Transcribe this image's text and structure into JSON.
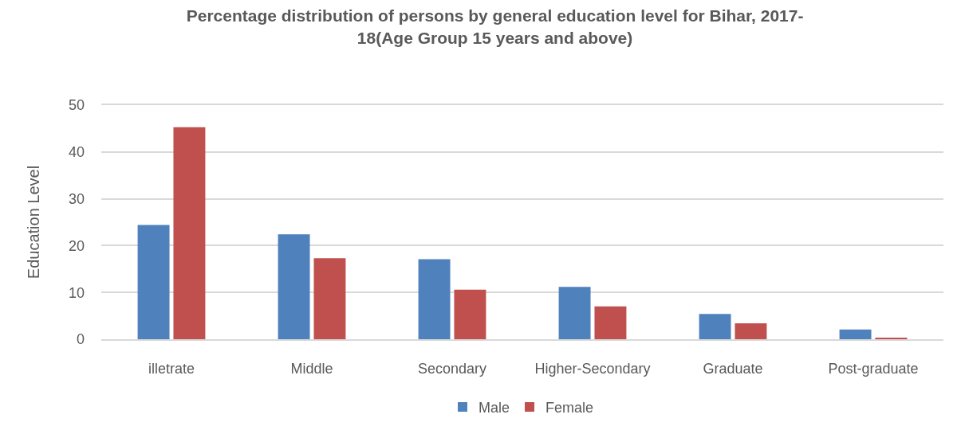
{
  "chart_data": {
    "type": "bar",
    "title": "Percentage distribution of persons by general education level for Bihar, 2017-\n18(Age Group 15 years and above)",
    "ylabel": "Education Level",
    "categories": [
      "illetrate",
      "Middle",
      "Secondary",
      "Higher-Secondary",
      "Graduate",
      "Post-graduate"
    ],
    "series": [
      {
        "name": "Male",
        "color": "#4f81bd",
        "values": [
          24.4,
          22.4,
          17.1,
          11.2,
          5.4,
          2.1
        ]
      },
      {
        "name": "Female",
        "color": "#c0504d",
        "values": [
          45.3,
          17.3,
          10.6,
          7.0,
          3.4,
          0.3
        ]
      }
    ],
    "ylim": [
      0,
      50
    ],
    "yticks": [
      0,
      10,
      20,
      30,
      40,
      50
    ],
    "grid": "y",
    "legend": "bottom"
  }
}
